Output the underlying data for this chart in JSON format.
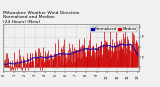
{
  "title": "Milwaukee Weather Wind Direction\nNormalized and Median\n(24 Hours) (New)",
  "title_fontsize": 3.2,
  "background_color": "#f0f0f0",
  "plot_bg_color": "#f0f0f0",
  "bar_color": "#cc0000",
  "median_color": "#0000bb",
  "grid_color": "#aaaaaa",
  "ylim": [
    -0.5,
    5.5
  ],
  "num_points": 280,
  "seed": 42,
  "legend_blue_label": "Normalized",
  "legend_red_label": "Median",
  "legend_fontsize": 2.8,
  "tick_fontsize": 2.5,
  "ytick_labels": [
    "",
    "F",
    "",
    "F",
    ""
  ],
  "ytick_positions": [
    0.0,
    1.3,
    2.6,
    3.9,
    5.2
  ]
}
